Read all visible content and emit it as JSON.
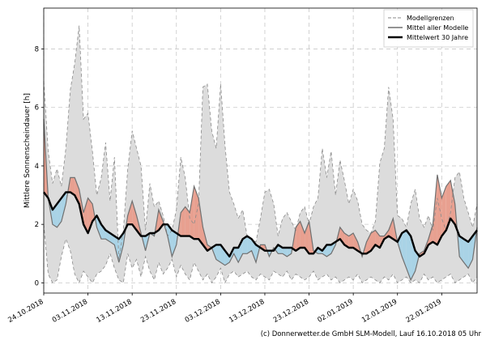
{
  "chart_data": {
    "type": "line",
    "title": "",
    "xlabel": "",
    "ylabel": "Mittlere Sonnenscheindauer [h]",
    "ylim": [
      -0.35,
      9.4
    ],
    "xlim": [
      0,
      98
    ],
    "yticks": [
      0,
      2,
      4,
      6,
      8
    ],
    "xticks": [
      {
        "x": 0,
        "label": "24.10.2018"
      },
      {
        "x": 10,
        "label": "03.11.2018"
      },
      {
        "x": 20,
        "label": "13.11.2018"
      },
      {
        "x": 30,
        "label": "23.11.2018"
      },
      {
        "x": 40,
        "label": "03.12.2018"
      },
      {
        "x": 50,
        "label": "13.12.2018"
      },
      {
        "x": 60,
        "label": "23.12.2018"
      },
      {
        "x": 70,
        "label": "02.01.2019"
      },
      {
        "x": 80,
        "label": "12.01.2019"
      },
      {
        "x": 90,
        "label": "22.01.2019"
      }
    ],
    "grid": true,
    "legend": {
      "position": "top-right",
      "entries": [
        {
          "label": "Modellgrenzen",
          "style": "dashed-gray"
        },
        {
          "label": "Mittel aller Modelle",
          "style": "solid-gray"
        },
        {
          "label": "Mittelwert 30 Jahre",
          "style": "solid-black-bold"
        }
      ]
    },
    "series": [
      {
        "name": "Modellgrenzen (max)",
        "x": [
          0,
          1,
          2,
          3,
          4,
          5,
          6,
          7,
          8,
          9,
          10,
          11,
          12,
          13,
          14,
          15,
          16,
          17,
          18,
          19,
          20,
          21,
          22,
          23,
          24,
          25,
          26,
          27,
          28,
          29,
          30,
          31,
          32,
          33,
          34,
          35,
          36,
          37,
          38,
          39,
          40,
          41,
          42,
          43,
          44,
          45,
          46,
          47,
          48,
          49,
          50,
          51,
          52,
          53,
          54,
          55,
          56,
          57,
          58,
          59,
          60,
          61,
          62,
          63,
          64,
          65,
          66,
          67,
          68,
          69,
          70,
          71,
          72,
          73,
          74,
          75,
          76,
          77,
          78,
          79,
          80,
          81,
          82,
          83,
          84,
          85,
          86,
          87,
          88,
          89,
          90,
          91,
          92,
          93,
          94,
          95,
          96,
          97,
          98
        ],
        "values": [
          6.9,
          4.5,
          3.4,
          3.9,
          3.3,
          4.6,
          6.6,
          7.5,
          8.8,
          5.6,
          5.8,
          4.5,
          3.0,
          3.6,
          4.8,
          2.8,
          4.3,
          0.8,
          1.8,
          3.9,
          5.2,
          4.6,
          4.0,
          1.8,
          3.4,
          2.6,
          2.8,
          2.3,
          1.6,
          1.8,
          2.5,
          4.3,
          3.6,
          2.2,
          2.0,
          2.7,
          6.7,
          6.8,
          5.2,
          4.6,
          6.8,
          4.7,
          3.1,
          2.7,
          2.2,
          2.5,
          1.6,
          1.5,
          1.4,
          2.2,
          3.1,
          3.2,
          2.7,
          1.6,
          2.2,
          2.4,
          2.1,
          1.8,
          2.4,
          2.6,
          2.0,
          2.6,
          2.9,
          4.6,
          3.6,
          4.5,
          3.0,
          4.2,
          3.5,
          2.7,
          3.2,
          2.8,
          2.0,
          1.8,
          1.7,
          2.1,
          4.1,
          4.6,
          6.7,
          5.6,
          2.3,
          2.2,
          1.9,
          2.7,
          3.2,
          2.2,
          1.9,
          2.3,
          1.8,
          2.9,
          2.2,
          1.8,
          2.4,
          3.6,
          3.8,
          2.9,
          2.4,
          1.9,
          2.7
        ]
      },
      {
        "name": "Modellgrenzen (min)",
        "x": [
          0,
          1,
          2,
          3,
          4,
          5,
          6,
          7,
          8,
          9,
          10,
          11,
          12,
          13,
          14,
          15,
          16,
          17,
          18,
          19,
          20,
          21,
          22,
          23,
          24,
          25,
          26,
          27,
          28,
          29,
          30,
          31,
          32,
          33,
          34,
          35,
          36,
          37,
          38,
          39,
          40,
          41,
          42,
          43,
          44,
          45,
          46,
          47,
          48,
          49,
          50,
          51,
          52,
          53,
          54,
          55,
          56,
          57,
          58,
          59,
          60,
          61,
          62,
          63,
          64,
          65,
          66,
          67,
          68,
          69,
          70,
          71,
          72,
          73,
          74,
          75,
          76,
          77,
          78,
          79,
          80,
          81,
          82,
          83,
          84,
          85,
          86,
          87,
          88,
          89,
          90,
          91,
          92,
          93,
          94,
          95,
          96,
          97,
          98
        ],
        "values": [
          2.0,
          0.3,
          0.0,
          0.1,
          0.9,
          1.5,
          1.1,
          0.3,
          0.0,
          0.4,
          0.2,
          0.0,
          0.3,
          0.4,
          0.6,
          1.0,
          0.5,
          0.1,
          0.0,
          1.0,
          0.5,
          0.8,
          0.2,
          0.9,
          0.4,
          0.1,
          0.7,
          0.3,
          0.5,
          0.8,
          0.2,
          0.6,
          0.3,
          0.1,
          0.7,
          0.4,
          0.1,
          0.3,
          0.0,
          0.2,
          0.5,
          0.0,
          0.3,
          0.4,
          0.2,
          0.3,
          0.4,
          0.2,
          0.1,
          0.3,
          0.2,
          0.1,
          0.4,
          0.3,
          0.2,
          0.4,
          0.1,
          0.3,
          0.2,
          0.1,
          0.2,
          0.4,
          0.1,
          0.2,
          0.3,
          0.1,
          0.2,
          0.0,
          0.1,
          0.2,
          0.1,
          0.3,
          0.0,
          0.1,
          0.2,
          0.1,
          0.0,
          0.2,
          0.1,
          0.3,
          0.0,
          0.1,
          0.2,
          0.0,
          0.1,
          0.0,
          0.3,
          0.1,
          0.2,
          0.0,
          0.1,
          0.2,
          0.3,
          0.0,
          0.1,
          0.2,
          0.3,
          0.0,
          0.2
        ]
      },
      {
        "name": "Mittel aller Modelle",
        "x": [
          0,
          1,
          2,
          3,
          4,
          5,
          6,
          7,
          8,
          9,
          10,
          11,
          12,
          13,
          14,
          15,
          16,
          17,
          18,
          19,
          20,
          21,
          22,
          23,
          24,
          25,
          26,
          27,
          28,
          29,
          30,
          31,
          32,
          33,
          34,
          35,
          36,
          37,
          38,
          39,
          40,
          41,
          42,
          43,
          44,
          45,
          46,
          47,
          48,
          49,
          50,
          51,
          52,
          53,
          54,
          55,
          56,
          57,
          58,
          59,
          60,
          61,
          62,
          63,
          64,
          65,
          66,
          67,
          68,
          69,
          70,
          71,
          72,
          73,
          74,
          75,
          76,
          77,
          78,
          79,
          80,
          81,
          82,
          83,
          84,
          85,
          86,
          87,
          88,
          89,
          90,
          91,
          92,
          93,
          94,
          95,
          96,
          97,
          98
        ],
        "values": [
          5.6,
          2.9,
          2.0,
          1.9,
          2.1,
          2.7,
          3.6,
          3.6,
          3.2,
          2.4,
          2.9,
          2.7,
          1.9,
          1.5,
          1.5,
          1.4,
          1.3,
          0.7,
          1.3,
          2.3,
          2.8,
          2.3,
          1.7,
          1.1,
          1.7,
          1.6,
          2.5,
          2.1,
          1.6,
          0.9,
          1.3,
          2.4,
          2.6,
          2.4,
          3.3,
          2.9,
          1.9,
          1.3,
          1.2,
          0.8,
          0.7,
          0.6,
          0.7,
          1.0,
          0.7,
          1.0,
          1.0,
          1.1,
          0.7,
          1.3,
          1.3,
          0.9,
          1.2,
          1.0,
          1.0,
          0.9,
          1.0,
          1.9,
          2.1,
          1.7,
          2.1,
          1.1,
          1.0,
          1.0,
          0.9,
          1.0,
          1.3,
          1.9,
          1.7,
          1.6,
          1.7,
          1.4,
          0.9,
          1.4,
          1.7,
          1.8,
          1.6,
          1.6,
          1.8,
          2.2,
          1.4,
          0.9,
          0.5,
          0.1,
          0.4,
          1.0,
          1.1,
          1.5,
          2.0,
          3.7,
          2.9,
          3.3,
          3.5,
          2.7,
          0.9,
          0.7,
          0.5,
          0.8,
          1.9
        ]
      },
      {
        "name": "Mittelwert 30 Jahre",
        "x": [
          0,
          1,
          2,
          3,
          4,
          5,
          6,
          7,
          8,
          9,
          10,
          11,
          12,
          13,
          14,
          15,
          16,
          17,
          18,
          19,
          20,
          21,
          22,
          23,
          24,
          25,
          26,
          27,
          28,
          29,
          30,
          31,
          32,
          33,
          34,
          35,
          36,
          37,
          38,
          39,
          40,
          41,
          42,
          43,
          44,
          45,
          46,
          47,
          48,
          49,
          50,
          51,
          52,
          53,
          54,
          55,
          56,
          57,
          58,
          59,
          60,
          61,
          62,
          63,
          64,
          65,
          66,
          67,
          68,
          69,
          70,
          71,
          72,
          73,
          74,
          75,
          76,
          77,
          78,
          79,
          80,
          81,
          82,
          83,
          84,
          85,
          86,
          87,
          88,
          89,
          90,
          91,
          92,
          93,
          94,
          95,
          96,
          97,
          98
        ],
        "values": [
          3.1,
          2.9,
          2.5,
          2.7,
          2.9,
          3.1,
          3.1,
          3.0,
          2.7,
          2.0,
          1.7,
          2.1,
          2.3,
          2.0,
          1.8,
          1.7,
          1.6,
          1.5,
          1.7,
          2.0,
          2.0,
          1.8,
          1.6,
          1.6,
          1.7,
          1.7,
          1.8,
          2.0,
          2.0,
          1.8,
          1.7,
          1.6,
          1.6,
          1.6,
          1.5,
          1.5,
          1.3,
          1.1,
          1.2,
          1.3,
          1.3,
          1.1,
          0.9,
          1.2,
          1.2,
          1.5,
          1.6,
          1.5,
          1.3,
          1.2,
          1.1,
          1.1,
          1.1,
          1.3,
          1.2,
          1.2,
          1.2,
          1.1,
          1.2,
          1.2,
          1.0,
          1.0,
          1.2,
          1.1,
          1.3,
          1.3,
          1.4,
          1.5,
          1.3,
          1.2,
          1.2,
          1.1,
          1.0,
          1.0,
          1.1,
          1.3,
          1.2,
          1.5,
          1.6,
          1.5,
          1.4,
          1.7,
          1.8,
          1.6,
          1.1,
          0.9,
          1.0,
          1.3,
          1.4,
          1.3,
          1.6,
          1.8,
          2.2,
          2.0,
          1.6,
          1.5,
          1.4,
          1.6,
          1.8
        ]
      }
    ]
  },
  "credit": "(c) Donnerwetter.de GmbH SLM-Modell, Lauf 16.10.2018 05 Uhr",
  "colors": {
    "range_fill": "#dcdcdc",
    "range_line": "#8a8a8a",
    "above_fill": "#e8a090",
    "below_fill": "#a9d3e6",
    "model_line": "#707070",
    "climate_line": "#000000",
    "grid": "#c8c8c8"
  }
}
